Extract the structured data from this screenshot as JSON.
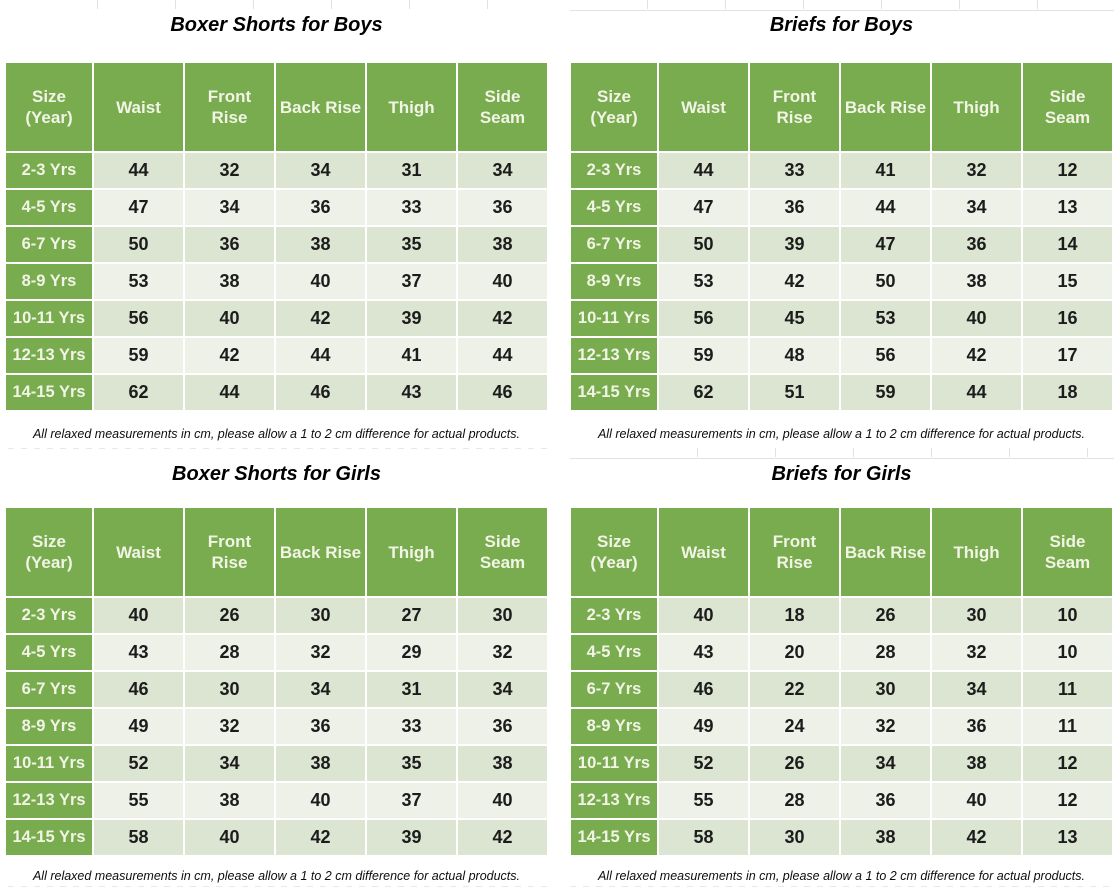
{
  "colors": {
    "header_green": "#78ac4e",
    "header_text": "#f2f4e6",
    "row_dark": "#dbe5d1",
    "row_light": "#edf1e7",
    "data_text": "#1c1c1c",
    "title_text": "#000000",
    "grid_artifact": "#e2e2e2"
  },
  "columns": [
    "Size\n(Year)",
    "Waist",
    "Front\nRise",
    "Back Rise",
    "Thigh",
    "Side\nSeam"
  ],
  "footnote": "All relaxed measurements in cm, please allow a 1 to 2 cm difference for actual products.",
  "tables": [
    {
      "title": "Boxer Shorts for Boys",
      "rows": [
        [
          "2-3 Yrs",
          44,
          32,
          34,
          31,
          34
        ],
        [
          "4-5 Yrs",
          47,
          34,
          36,
          33,
          36
        ],
        [
          "6-7 Yrs",
          50,
          36,
          38,
          35,
          38
        ],
        [
          "8-9 Yrs",
          53,
          38,
          40,
          37,
          40
        ],
        [
          "10-11 Yrs",
          56,
          40,
          42,
          39,
          42
        ],
        [
          "12-13 Yrs",
          59,
          42,
          44,
          41,
          44
        ],
        [
          "14-15 Yrs",
          62,
          44,
          46,
          43,
          46
        ]
      ]
    },
    {
      "title": "Briefs for Boys",
      "rows": [
        [
          "2-3 Yrs",
          44,
          33,
          41,
          32,
          12
        ],
        [
          "4-5 Yrs",
          47,
          36,
          44,
          34,
          13
        ],
        [
          "6-7 Yrs",
          50,
          39,
          47,
          36,
          14
        ],
        [
          "8-9 Yrs",
          53,
          42,
          50,
          38,
          15
        ],
        [
          "10-11 Yrs",
          56,
          45,
          53,
          40,
          16
        ],
        [
          "12-13 Yrs",
          59,
          48,
          56,
          42,
          17
        ],
        [
          "14-15 Yrs",
          62,
          51,
          59,
          44,
          18
        ]
      ]
    },
    {
      "title": "Boxer Shorts for Girls",
      "rows": [
        [
          "2-3 Yrs",
          40,
          26,
          30,
          27,
          30
        ],
        [
          "4-5 Yrs",
          43,
          28,
          32,
          29,
          32
        ],
        [
          "6-7 Yrs",
          46,
          30,
          34,
          31,
          34
        ],
        [
          "8-9 Yrs",
          49,
          32,
          36,
          33,
          36
        ],
        [
          "10-11 Yrs",
          52,
          34,
          38,
          35,
          38
        ],
        [
          "12-13 Yrs",
          55,
          38,
          40,
          37,
          40
        ],
        [
          "14-15 Yrs",
          58,
          40,
          42,
          39,
          42
        ]
      ]
    },
    {
      "title": "Briefs for Girls",
      "rows": [
        [
          "2-3 Yrs",
          40,
          18,
          26,
          30,
          10
        ],
        [
          "4-5 Yrs",
          43,
          20,
          28,
          32,
          10
        ],
        [
          "6-7 Yrs",
          46,
          22,
          30,
          34,
          11
        ],
        [
          "8-9 Yrs",
          49,
          24,
          32,
          36,
          11
        ],
        [
          "10-11 Yrs",
          52,
          26,
          34,
          38,
          12
        ],
        [
          "12-13 Yrs",
          55,
          28,
          36,
          40,
          12
        ],
        [
          "14-15 Yrs",
          58,
          30,
          38,
          42,
          13
        ]
      ]
    }
  ]
}
